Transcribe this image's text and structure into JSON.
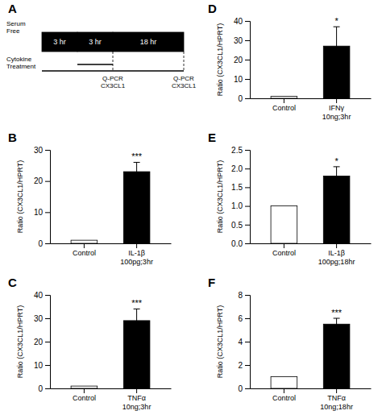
{
  "chart_data": [
    {
      "type": "timeline",
      "title": "A",
      "annotations": [
        "Serum\nFree",
        "3 hr",
        "3 hr",
        "18 hr",
        "Cytokine\nTreatment",
        "Q-PCR\nCX3CL1",
        "Q-PCR\nCX3CL1"
      ]
    },
    {
      "type": "bar",
      "title": "B",
      "categories": [
        "Control",
        "IL-1β\n100pg;3hr"
      ],
      "values": [
        1.0,
        23.0
      ],
      "errors": [
        0.0,
        3.0
      ],
      "colors": [
        "white",
        "black"
      ],
      "ylabel": "Ratio (CX3CL1/HPRT)",
      "ylim": [
        0,
        30
      ],
      "yticks": [
        0,
        10,
        20,
        30
      ],
      "annotations": [
        "***"
      ]
    },
    {
      "type": "bar",
      "title": "C",
      "categories": [
        "Control",
        "TNFα\n10ng;3hr"
      ],
      "values": [
        1.0,
        29.0
      ],
      "errors": [
        0.0,
        5.0
      ],
      "colors": [
        "white",
        "black"
      ],
      "ylabel": "Ratio (CX3CL1/HPRT)",
      "ylim": [
        0,
        40
      ],
      "yticks": [
        0,
        10,
        20,
        30,
        40
      ],
      "annotations": [
        "***"
      ]
    },
    {
      "type": "bar",
      "title": "D",
      "categories": [
        "Control",
        "IFNγ\n10ng;3hr"
      ],
      "values": [
        1.0,
        27.0
      ],
      "errors": [
        0.0,
        10.0
      ],
      "colors": [
        "white",
        "black"
      ],
      "ylabel": "Ratio (CX3CL1/HPRT)",
      "ylim": [
        0,
        40
      ],
      "yticks": [
        0,
        10,
        20,
        30,
        40
      ],
      "annotations": [
        "*"
      ]
    },
    {
      "type": "bar",
      "title": "E",
      "categories": [
        "Control",
        "IL-1β\n100pg;18hr"
      ],
      "values": [
        1.0,
        1.8
      ],
      "errors": [
        0.0,
        0.25
      ],
      "colors": [
        "white",
        "black"
      ],
      "ylabel": "Ratio (CX3CL1/HPRT)",
      "ylim": [
        0,
        2.5
      ],
      "yticks": [
        {
          "value": 0,
          "label": "0.0"
        },
        0.5,
        {
          "value": 1,
          "label": "1.0"
        },
        1.5,
        {
          "value": 2,
          "label": "2.0"
        },
        2.5
      ],
      "annotations": [
        "*"
      ]
    },
    {
      "type": "bar",
      "title": "F",
      "categories": [
        "Control",
        "TNFα\n10ng;18hr"
      ],
      "values": [
        1.0,
        5.5
      ],
      "errors": [
        0.0,
        0.5
      ],
      "colors": [
        "white",
        "black"
      ],
      "ylabel": "Ratio (CX3CL1/HPRT)",
      "ylim": [
        0,
        8
      ],
      "yticks": [
        0,
        2,
        4,
        6,
        8
      ],
      "annotations": [
        "***"
      ]
    }
  ]
}
